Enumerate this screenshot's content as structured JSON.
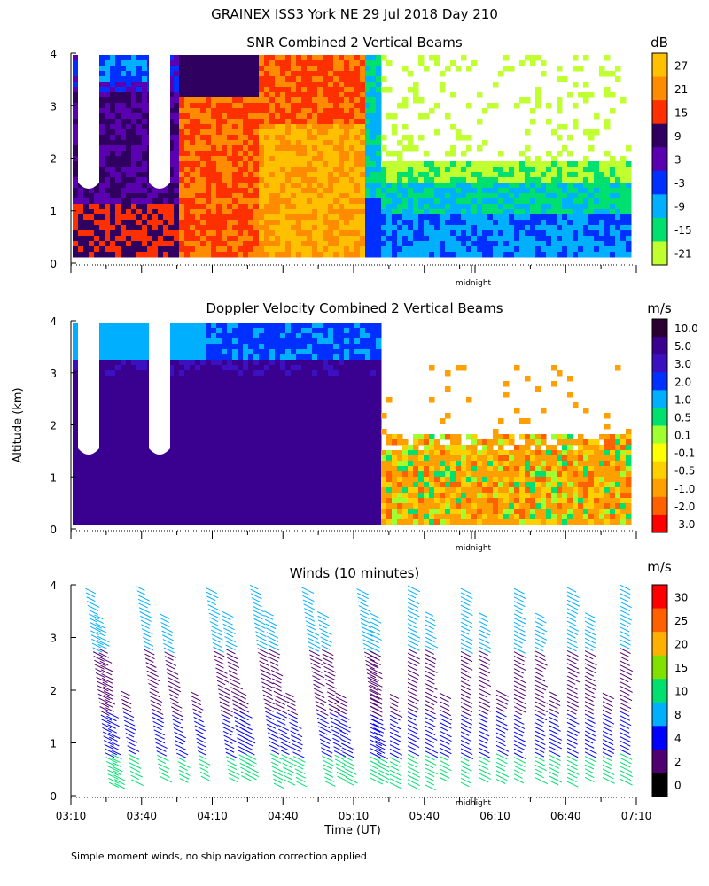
{
  "title": "GRAINEX ISS3 York NE  29 Jul 2018 Day 210",
  "y_axis_label": "Altitude (km)",
  "x_axis_label": "Time (UT)",
  "footnote": "Simple moment winds, no ship navigation correction applied",
  "midnight_label": "midnight",
  "chart_data": [
    {
      "type": "heatmap",
      "title": "SNR Combined 2 Vertical Beams",
      "ylabel": "Altitude (km)",
      "ylim": [
        0,
        4
      ],
      "yticks": [
        "0",
        "1",
        "2",
        "3",
        "4"
      ],
      "colorbar_unit": "dB",
      "colorbar_labels": [
        "27",
        "21",
        "15",
        "9",
        "3",
        "-3",
        "-9",
        "-15",
        "-21"
      ],
      "colors": [
        "#ffc000",
        "#ff8c00",
        "#ff3000",
        "#300060",
        "#5a00b0",
        "#0030ff",
        "#00b0ff",
        "#00e070",
        "#c0ff30"
      ]
    },
    {
      "type": "heatmap",
      "title": "Doppler Velocity Combined 2 Vertical Beams",
      "ylabel": "Altitude (km)",
      "ylim": [
        0,
        4
      ],
      "yticks": [
        "0",
        "1",
        "2",
        "3",
        "4"
      ],
      "colorbar_unit": "m/s",
      "colorbar_labels": [
        "10.0",
        "5.0",
        "3.0",
        "2.0",
        "1.0",
        "0.5",
        "0.1",
        "-0.1",
        "-0.5",
        "-1.0",
        "-2.0",
        "-3.0"
      ],
      "colors": [
        "#2a0030",
        "#3a0090",
        "#3a10c0",
        "#0030ff",
        "#00b0ff",
        "#00e070",
        "#a0ff30",
        "#ffff00",
        "#ffd000",
        "#ffa000",
        "#ff6000",
        "#ff0000"
      ]
    },
    {
      "type": "scatter",
      "title": "Winds (10 minutes)",
      "ylabel": "Altitude (km)",
      "ylim": [
        0,
        4
      ],
      "yticks": [
        "0",
        "1",
        "2",
        "3",
        "4"
      ],
      "x_tick_labels": [
        "03:10",
        "03:40",
        "04:10",
        "04:40",
        "05:10",
        "05:40",
        "06:10",
        "06:40",
        "07:10"
      ],
      "xlabel": "Time (UT)",
      "colorbar_unit": "m/s",
      "colorbar_labels": [
        "30",
        "25",
        "20",
        "15",
        "10",
        "8",
        "4",
        "2",
        "0"
      ],
      "colors": [
        "#ff0000",
        "#ff6000",
        "#ffb000",
        "#80e000",
        "#00e070",
        "#00b0ff",
        "#0000ff",
        "#500070",
        "#000000"
      ]
    }
  ]
}
